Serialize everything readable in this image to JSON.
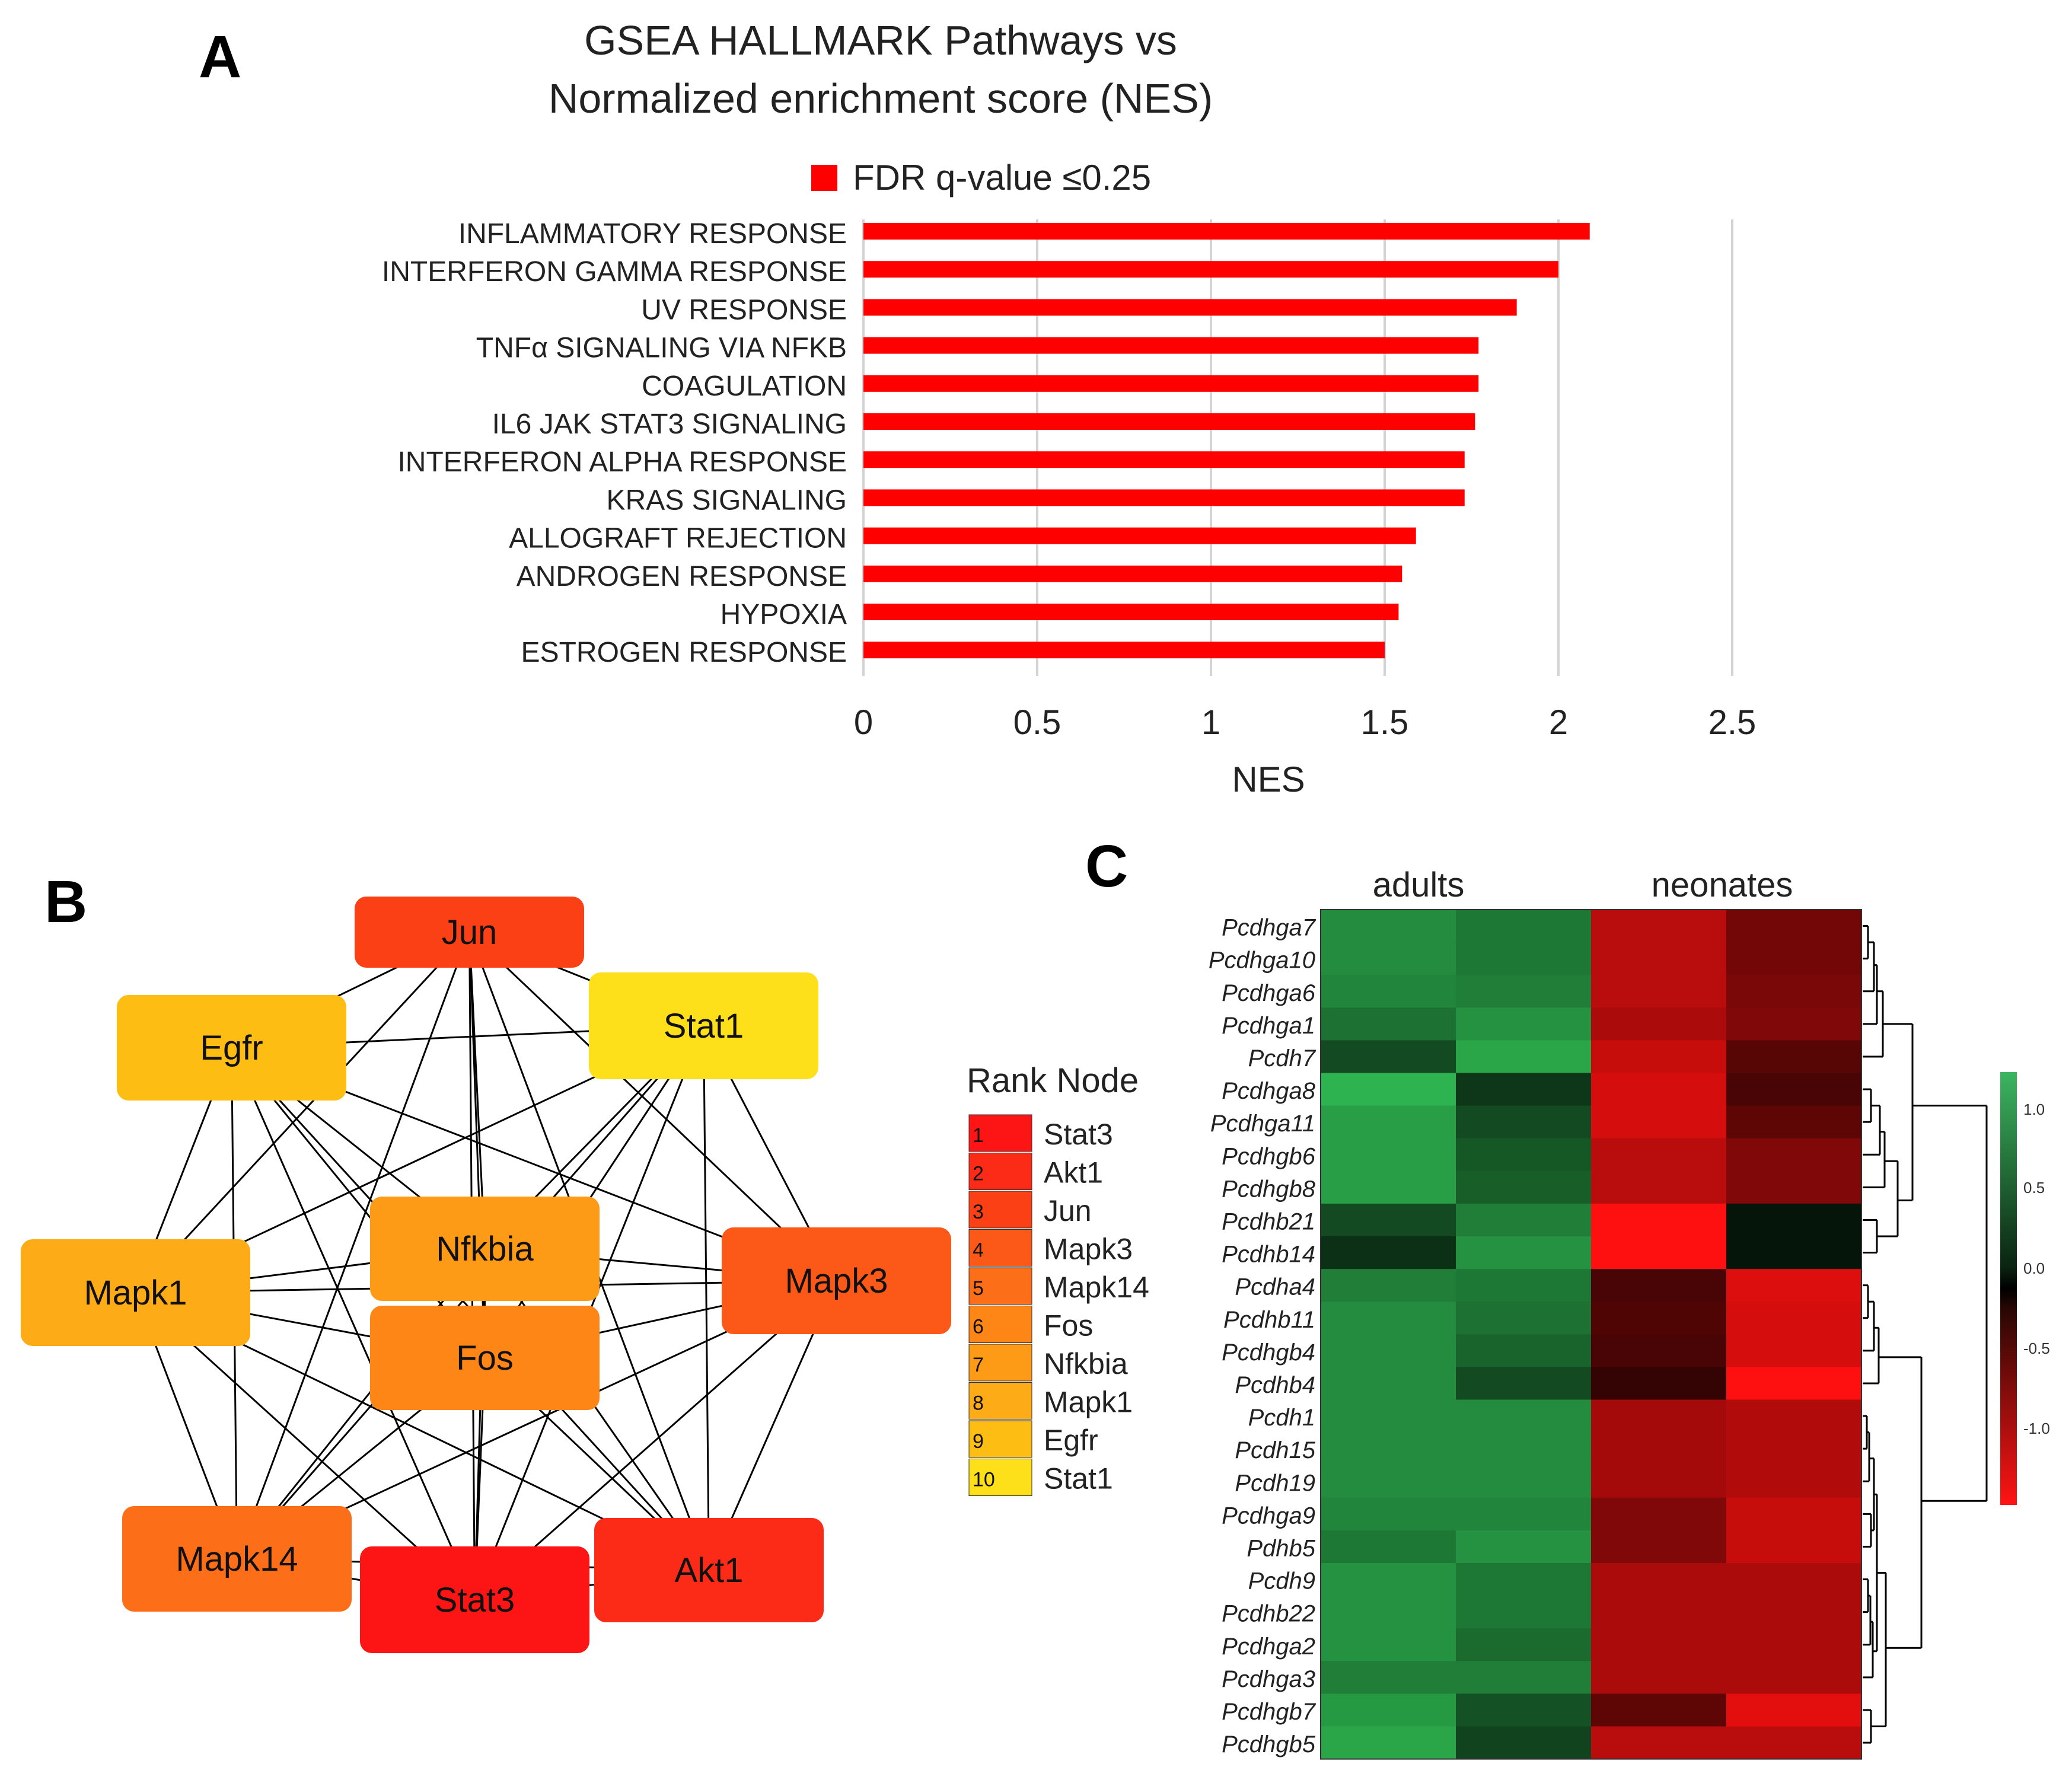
{
  "panels": {
    "a": {
      "letter": "A",
      "title_line1": "GSEA HALLMARK Pathways vs",
      "title_line2": "Normalized enrichment score (NES)",
      "legend_label": "FDR q-value  ≤0.25"
    },
    "b": {
      "letter": "B",
      "rank_title": "Rank Node"
    },
    "c": {
      "letter": "C"
    }
  },
  "chart_data": [
    {
      "type": "bar",
      "orientation": "horizontal",
      "title": "GSEA HALLMARK Pathways vs Normalized enrichment score (NES)",
      "xlabel": "NES",
      "ylabel": "",
      "xlim": [
        0,
        2.5
      ],
      "xticks": [
        "0",
        "0.5",
        "1",
        "1.5",
        "2",
        "2.5"
      ],
      "grid": "vertical",
      "legend": {
        "position": "top",
        "entries": [
          "FDR q-value  ≤0.25"
        ]
      },
      "color": "#ff0000",
      "categories": [
        "INFLAMMATORY  RESPONSE",
        "INTERFERON  GAMMA RESPONSE",
        "UV RESPONSE",
        "TNFα SIGNALING  VIA NFKB",
        "COAGULATION",
        "IL6 JAK STAT3 SIGNALING",
        "INTERFERON  ALPHA RESPONSE",
        "KRAS SIGNALING",
        "ALLOGRAFT REJECTION",
        "ANDROGEN  RESPONSE",
        "HYPOXIA",
        "ESTROGEN  RESPONSE"
      ],
      "values": [
        2.09,
        2.0,
        1.88,
        1.77,
        1.77,
        1.76,
        1.73,
        1.73,
        1.59,
        1.55,
        1.54,
        1.5
      ]
    },
    {
      "type": "network",
      "title": "",
      "legend_title": "Rank Node",
      "nodes": [
        {
          "id": "Jun",
          "rank": 3,
          "color": "#fc4016"
        },
        {
          "id": "Egfr",
          "rank": 9,
          "color": "#fdbd13"
        },
        {
          "id": "Stat1",
          "rank": 10,
          "color": "#fde01a"
        },
        {
          "id": "Nfkbia",
          "rank": 7,
          "color": "#fd9a16"
        },
        {
          "id": "Mapk1",
          "rank": 8,
          "color": "#fdab16"
        },
        {
          "id": "Mapk3",
          "rank": 4,
          "color": "#fc5817"
        },
        {
          "id": "Fos",
          "rank": 6,
          "color": "#fd8617"
        },
        {
          "id": "Mapk14",
          "rank": 5,
          "color": "#fc6f18"
        },
        {
          "id": "Stat3",
          "rank": 1,
          "color": "#fd1414"
        },
        {
          "id": "Akt1",
          "rank": 2,
          "color": "#fc2b18"
        }
      ],
      "edges": "complete graph among all 10 nodes",
      "ranking": [
        {
          "rank": "1",
          "node": "Stat3",
          "color": "#fd1414"
        },
        {
          "rank": "2",
          "node": "Akt1",
          "color": "#fc2b18"
        },
        {
          "rank": "3",
          "node": "Jun",
          "color": "#fc4016"
        },
        {
          "rank": "4",
          "node": "Mapk3",
          "color": "#fc5817"
        },
        {
          "rank": "5",
          "node": "Mapk14",
          "color": "#fc6f18"
        },
        {
          "rank": "6",
          "node": "Fos",
          "color": "#fd8617"
        },
        {
          "rank": "7",
          "node": "Nfkbia",
          "color": "#fd9a16"
        },
        {
          "rank": "8",
          "node": "Mapk1",
          "color": "#fdab16"
        },
        {
          "rank": "9",
          "node": "Egfr",
          "color": "#fdbd13"
        },
        {
          "rank": "10",
          "node": "Stat1",
          "color": "#fde01a"
        }
      ]
    },
    {
      "type": "heatmap",
      "title": "",
      "group_labels": [
        "adults",
        "neonates"
      ],
      "columns": 4,
      "rows": [
        "Pcdhga7",
        "Pcdhga10",
        "Pcdhga6",
        "Pcdhga1",
        "Pcdh7",
        "Pcdhga8",
        "Pcdhga11",
        "Pcdhgb6",
        "Pcdhgb8",
        "Pcdhb21",
        "Pcdhb14",
        "Pcdha4",
        "Pcdhb11",
        "Pcdhgb4",
        "Pcdhb4",
        "Pcdh1",
        "Pcdh15",
        "Pcdh19",
        "Pcdhga9",
        "Pdhb5",
        "Pcdh9",
        "Pcdhb22",
        "Pcdhga2",
        "Pcdhga3",
        "Pcdhgb7",
        "Pcdhgb5"
      ],
      "values": [
        [
          0.9,
          0.75,
          -1.1,
          -0.6
        ],
        [
          0.9,
          0.75,
          -1.1,
          -0.6
        ],
        [
          0.85,
          0.8,
          -1.1,
          -0.65
        ],
        [
          0.7,
          0.95,
          -1.0,
          -0.7
        ],
        [
          0.4,
          1.1,
          -1.2,
          -0.4
        ],
        [
          1.2,
          0.25,
          -1.3,
          -0.3
        ],
        [
          1.05,
          0.4,
          -1.3,
          -0.45
        ],
        [
          1.05,
          0.5,
          -1.1,
          -0.7
        ],
        [
          1.05,
          0.55,
          -1.1,
          -0.7
        ],
        [
          0.4,
          0.8,
          -1.6,
          0.0
        ],
        [
          0.2,
          0.95,
          -1.6,
          0.0
        ],
        [
          0.8,
          0.75,
          -0.3,
          -1.35
        ],
        [
          0.9,
          0.7,
          -0.35,
          -1.3
        ],
        [
          0.9,
          0.6,
          -0.3,
          -1.3
        ],
        [
          0.9,
          0.4,
          -0.15,
          -1.6
        ],
        [
          0.9,
          0.9,
          -0.95,
          -1.05
        ],
        [
          0.9,
          0.9,
          -0.95,
          -1.05
        ],
        [
          0.9,
          0.9,
          -0.95,
          -1.05
        ],
        [
          0.85,
          0.85,
          -0.7,
          -1.2
        ],
        [
          0.75,
          0.95,
          -0.7,
          -1.2
        ],
        [
          0.95,
          0.75,
          -1.0,
          -1.0
        ],
        [
          0.95,
          0.75,
          -1.0,
          -1.0
        ],
        [
          0.95,
          0.65,
          -1.0,
          -1.0
        ],
        [
          0.8,
          0.8,
          -1.0,
          -1.0
        ],
        [
          1.0,
          0.45,
          -0.45,
          -1.4
        ],
        [
          1.1,
          0.35,
          -1.1,
          -1.1
        ]
      ],
      "colorbar": {
        "ticks": [
          "1.0",
          "0.5",
          "0.0",
          "-0.5",
          "-1.0"
        ],
        "low_color": "#ff1010",
        "mid_color": "#000000",
        "high_color": "#2db34f"
      }
    }
  ]
}
